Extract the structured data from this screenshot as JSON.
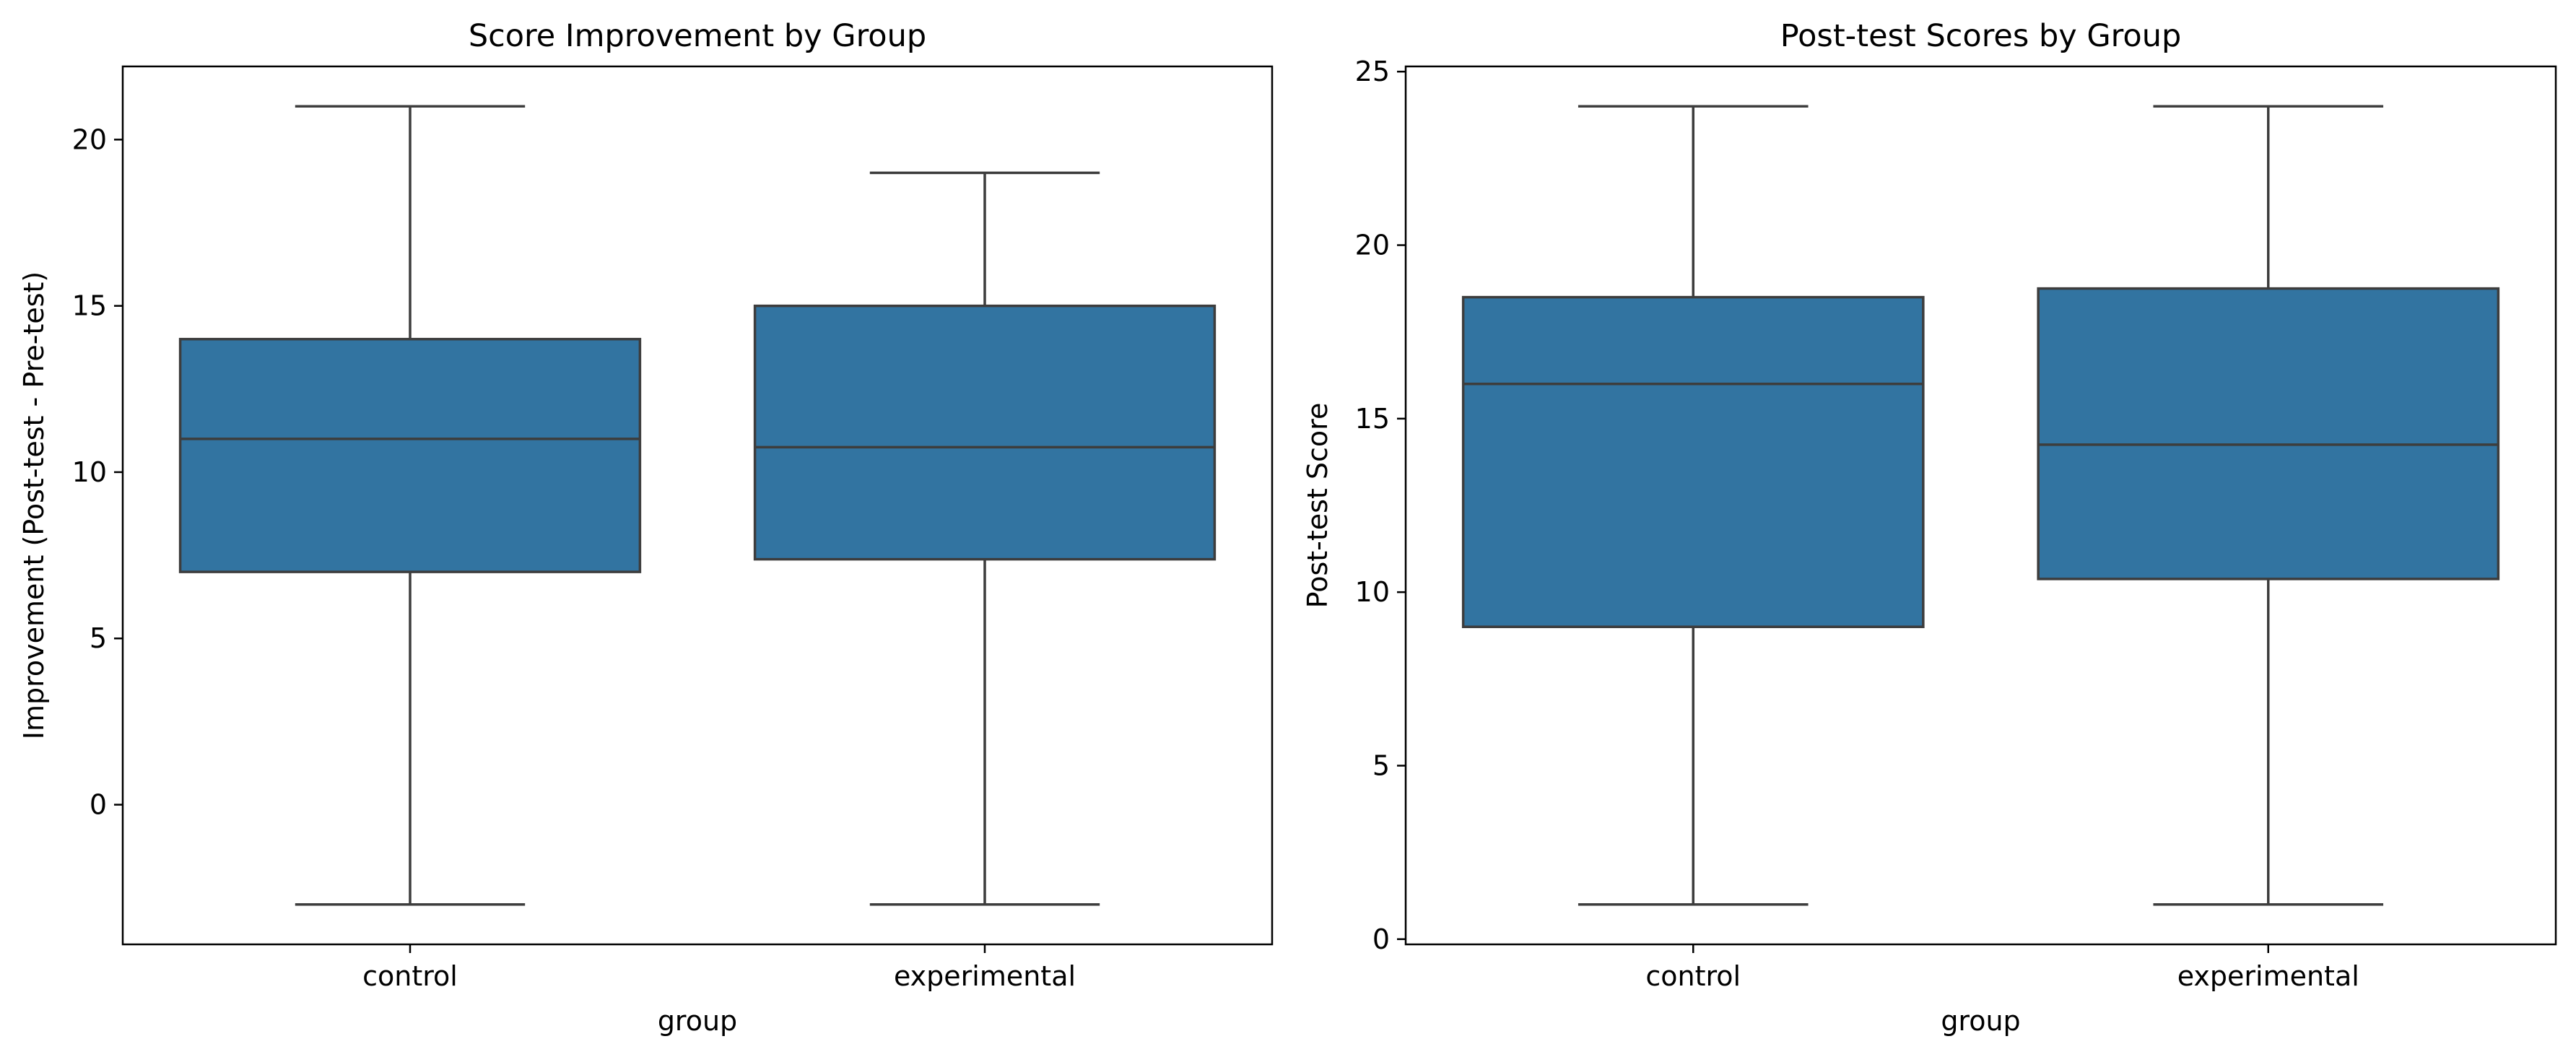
{
  "colors": {
    "box_fill": "#3274a1",
    "line": "#3d3d3d",
    "axes": "#000000",
    "background": "#ffffff"
  },
  "chart_data": [
    {
      "type": "box",
      "title": "Score Improvement by Group",
      "xlabel": "group",
      "ylabel": "Improvement (Post-test - Pre-test)",
      "categories": [
        "control",
        "experimental"
      ],
      "ylim": [
        -4.2,
        22.2
      ],
      "yticks": [
        0,
        5,
        10,
        15,
        20
      ],
      "grid": false,
      "boxes": [
        {
          "category": "control",
          "whisker_low": -3,
          "q1": 7,
          "median": 11,
          "q3": 14,
          "whisker_high": 21
        },
        {
          "category": "experimental",
          "whisker_low": -3,
          "q1": 7.38,
          "median": 10.75,
          "q3": 15,
          "whisker_high": 19
        }
      ]
    },
    {
      "type": "box",
      "title": "Post-test Scores by Group",
      "xlabel": "group",
      "ylabel": "Post-test Score",
      "categories": [
        "control",
        "experimental"
      ],
      "ylim": [
        -0.15,
        25.15
      ],
      "yticks": [
        0,
        5,
        10,
        15,
        20,
        25
      ],
      "grid": false,
      "boxes": [
        {
          "category": "control",
          "whisker_low": 1,
          "q1": 9,
          "median": 16,
          "q3": 18.5,
          "whisker_high": 24
        },
        {
          "category": "experimental",
          "whisker_low": 1,
          "q1": 10.38,
          "median": 14.25,
          "q3": 18.75,
          "whisker_high": 24
        }
      ]
    }
  ]
}
